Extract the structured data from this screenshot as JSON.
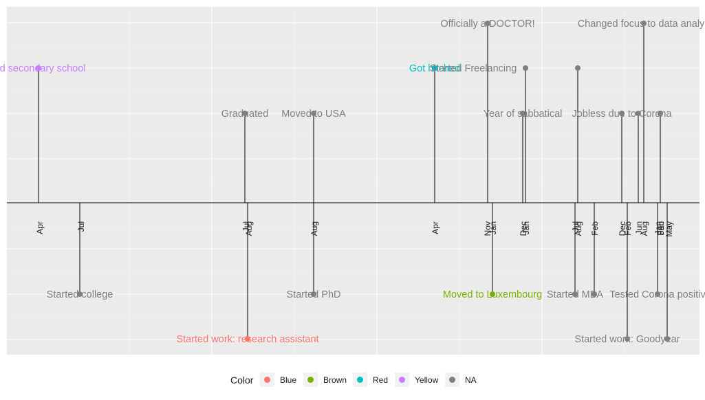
{
  "chart_data": {
    "type": "timeline",
    "colors": {
      "Blue": "#F8766D",
      "Brown": "#7CAE00",
      "Red": "#00BFC4",
      "Yellow": "#C77CFF",
      "NA": "#7F7F7F"
    },
    "events": [
      {
        "date": "Apr",
        "label": "ted secondary school",
        "color": "Yellow",
        "position": 3
      },
      {
        "date": "Jul",
        "label": "Started college",
        "color": "NA",
        "position": -2
      },
      {
        "date": "Jul",
        "label": "Graduated",
        "color": "NA",
        "position": 2
      },
      {
        "date": "Aug",
        "label": "Started work: research assistant",
        "color": "Blue",
        "position": -3
      },
      {
        "date": "Aug",
        "label": "Moved to USA",
        "color": "NA",
        "position": 2
      },
      {
        "date": "Aug",
        "label": "Started PhD",
        "color": "NA",
        "position": -2
      },
      {
        "date": "Apr",
        "label": "Got hitched",
        "color": "Red",
        "position": 3
      },
      {
        "date": "Nov",
        "label": "Officially a DOCTOR!",
        "color": "NA",
        "position": 4
      },
      {
        "date": "Jan",
        "label": "Moved to Luxembourg",
        "color": "Brown",
        "position": -2
      },
      {
        "date": "Dec",
        "label": "Year of sabbatical",
        "color": "NA",
        "position": 2
      },
      {
        "date": "Jan",
        "label": "Started Freelancing",
        "color": "NA",
        "position": 3
      },
      {
        "date": "Jul",
        "label": "Started MBA",
        "color": "NA",
        "position": -2
      },
      {
        "date": "Aug",
        "label": "",
        "color": "NA",
        "position": 3
      },
      {
        "date": "Feb",
        "label": "",
        "color": "NA",
        "position": -2
      },
      {
        "date": "Dec",
        "label": "Jobless due to Corona",
        "color": "NA",
        "position": 2
      },
      {
        "date": "Feb",
        "label": "Started work: Goodyear",
        "color": "NA",
        "position": -3
      },
      {
        "date": "Jun",
        "label": "",
        "color": "NA",
        "position": 2
      },
      {
        "date": "Aug",
        "label": "Changed focus to data analy",
        "color": "NA",
        "position": 4
      },
      {
        "date": "Jan",
        "label": "Tested Corona positiv",
        "color": "NA",
        "position": -2
      },
      {
        "date": "Feb",
        "label": "",
        "color": "NA",
        "position": 2
      },
      {
        "date": "May",
        "label": "",
        "color": "NA",
        "position": -3
      }
    ],
    "month_labels": [
      "Apr",
      "Jul",
      "Jul",
      "Aug",
      "Aug",
      "Apr",
      "Nov",
      "Jan",
      "Dec",
      "Jan",
      "Jul",
      "Aug",
      "Feb",
      "Dec",
      "Feb",
      "Jun",
      "Aug",
      "Jan",
      "Feb",
      "Jan",
      "May"
    ],
    "legend": {
      "title": "Color",
      "entries": [
        "Blue",
        "Brown",
        "Red",
        "Yellow",
        "NA"
      ],
      "placement": "bottom"
    },
    "grid": true
  }
}
